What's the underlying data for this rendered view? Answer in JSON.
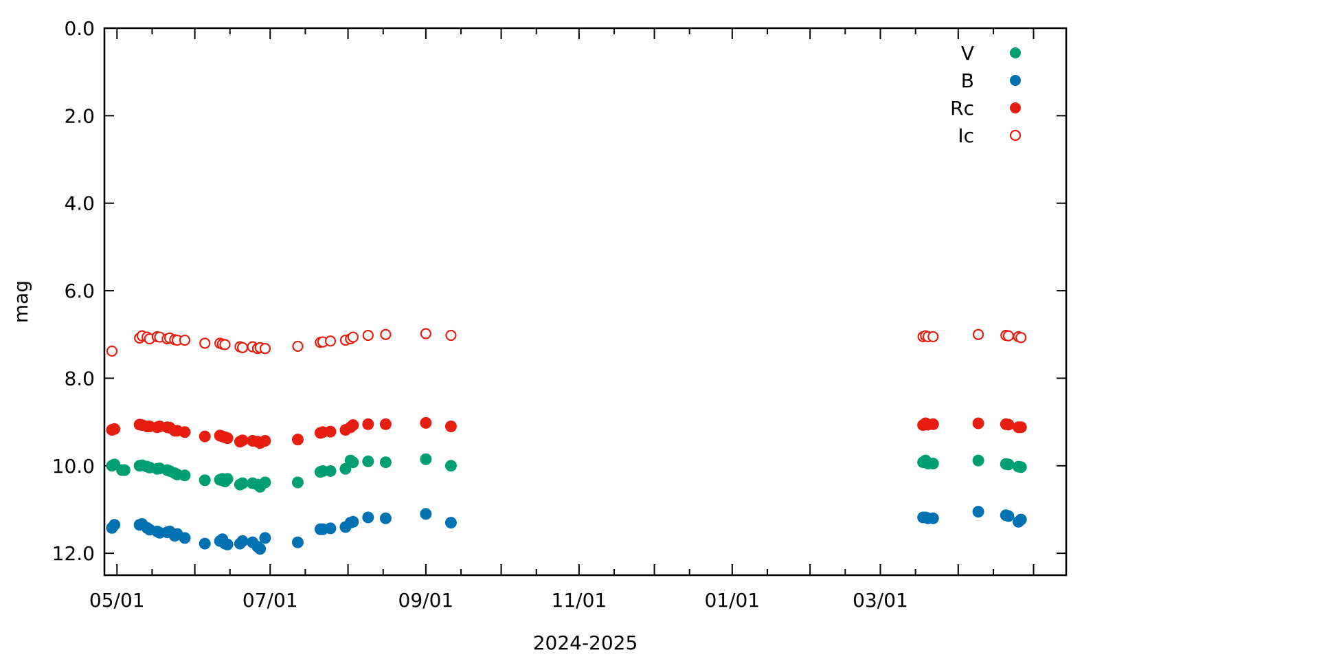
{
  "chart_data": {
    "type": "scatter",
    "title": "",
    "xlabel": "2024-2025",
    "ylabel": "mag",
    "y_reversed": true,
    "ylim": [
      0.0,
      12.5
    ],
    "xlim": [
      "2024-04-26",
      "2025-05-14"
    ],
    "y_ticks": [
      "0.0",
      "2.0",
      "4.0",
      "6.0",
      "8.0",
      "10.0",
      "12.0"
    ],
    "x_ticks": [
      {
        "date": "2024-05-01",
        "label": "05/01"
      },
      {
        "date": "2024-07-01",
        "label": "07/01"
      },
      {
        "date": "2024-09-01",
        "label": "09/01"
      },
      {
        "date": "2024-11-01",
        "label": "11/01"
      },
      {
        "date": "2025-01-01",
        "label": "01/01"
      },
      {
        "date": "2025-03-01",
        "label": "03/01"
      }
    ],
    "grid": false,
    "legend_position": "top-right",
    "series": [
      {
        "name": "V",
        "color": "#009e73",
        "marker": "filled-circle",
        "points": [
          [
            "2024-04-29",
            10.0
          ],
          [
            "2024-04-30",
            9.97
          ],
          [
            "2024-05-03",
            10.1
          ],
          [
            "2024-05-04",
            10.1
          ],
          [
            "2024-05-10",
            10.0
          ],
          [
            "2024-05-11",
            9.99
          ],
          [
            "2024-05-13",
            10.02
          ],
          [
            "2024-05-14",
            10.04
          ],
          [
            "2024-05-17",
            10.07
          ],
          [
            "2024-05-18",
            10.06
          ],
          [
            "2024-05-21",
            10.1
          ],
          [
            "2024-05-22",
            10.12
          ],
          [
            "2024-05-24",
            10.17
          ],
          [
            "2024-05-25",
            10.2
          ],
          [
            "2024-05-28",
            10.22
          ],
          [
            "2024-06-05",
            10.33
          ],
          [
            "2024-06-11",
            10.32
          ],
          [
            "2024-06-12",
            10.3
          ],
          [
            "2024-06-13",
            10.36
          ],
          [
            "2024-06-14",
            10.3
          ],
          [
            "2024-06-19",
            10.43
          ],
          [
            "2024-06-20",
            10.4
          ],
          [
            "2024-06-24",
            10.4
          ],
          [
            "2024-06-26",
            10.43
          ],
          [
            "2024-06-27",
            10.48
          ],
          [
            "2024-06-29",
            10.38
          ],
          [
            "2024-07-12",
            10.38
          ],
          [
            "2024-07-21",
            10.14
          ],
          [
            "2024-07-22",
            10.12
          ],
          [
            "2024-07-25",
            10.12
          ],
          [
            "2024-07-31",
            10.07
          ],
          [
            "2024-08-02",
            9.88
          ],
          [
            "2024-08-03",
            9.92
          ],
          [
            "2024-08-09",
            9.9
          ],
          [
            "2024-08-16",
            9.92
          ],
          [
            "2024-09-01",
            9.85
          ],
          [
            "2024-09-11",
            10.0
          ],
          [
            "2025-03-18",
            9.92
          ],
          [
            "2025-03-19",
            9.88
          ],
          [
            "2025-03-20",
            9.95
          ],
          [
            "2025-03-22",
            9.95
          ],
          [
            "2025-04-09",
            9.88
          ],
          [
            "2025-04-20",
            9.96
          ],
          [
            "2025-04-21",
            9.97
          ],
          [
            "2025-04-25",
            10.02
          ],
          [
            "2025-04-26",
            10.03
          ]
        ]
      },
      {
        "name": "B",
        "color": "#0072b2",
        "marker": "filled-circle",
        "points": [
          [
            "2024-04-29",
            11.42
          ],
          [
            "2024-04-30",
            11.35
          ],
          [
            "2024-05-10",
            11.35
          ],
          [
            "2024-05-11",
            11.33
          ],
          [
            "2024-05-13",
            11.42
          ],
          [
            "2024-05-14",
            11.46
          ],
          [
            "2024-05-17",
            11.5
          ],
          [
            "2024-05-18",
            11.53
          ],
          [
            "2024-05-21",
            11.52
          ],
          [
            "2024-05-22",
            11.5
          ],
          [
            "2024-05-24",
            11.6
          ],
          [
            "2024-05-25",
            11.56
          ],
          [
            "2024-05-28",
            11.65
          ],
          [
            "2024-06-05",
            11.78
          ],
          [
            "2024-06-11",
            11.72
          ],
          [
            "2024-06-12",
            11.68
          ],
          [
            "2024-06-13",
            11.78
          ],
          [
            "2024-06-14",
            11.8
          ],
          [
            "2024-06-19",
            11.78
          ],
          [
            "2024-06-20",
            11.72
          ],
          [
            "2024-06-24",
            11.75
          ],
          [
            "2024-06-26",
            11.85
          ],
          [
            "2024-06-27",
            11.9
          ],
          [
            "2024-06-29",
            11.65
          ],
          [
            "2024-07-12",
            11.75
          ],
          [
            "2024-07-21",
            11.45
          ],
          [
            "2024-07-22",
            11.45
          ],
          [
            "2024-07-25",
            11.43
          ],
          [
            "2024-07-31",
            11.4
          ],
          [
            "2024-08-02",
            11.3
          ],
          [
            "2024-08-03",
            11.28
          ],
          [
            "2024-08-09",
            11.18
          ],
          [
            "2024-08-16",
            11.2
          ],
          [
            "2024-09-01",
            11.1
          ],
          [
            "2024-09-11",
            11.3
          ],
          [
            "2025-03-18",
            11.18
          ],
          [
            "2025-03-19",
            11.18
          ],
          [
            "2025-03-20",
            11.2
          ],
          [
            "2025-03-22",
            11.2
          ],
          [
            "2025-04-09",
            11.05
          ],
          [
            "2025-04-20",
            11.13
          ],
          [
            "2025-04-21",
            11.15
          ],
          [
            "2025-04-25",
            11.28
          ],
          [
            "2025-04-26",
            11.23
          ]
        ]
      },
      {
        "name": "Rc",
        "color": "#e51e10",
        "marker": "filled-circle",
        "points": [
          [
            "2024-04-29",
            9.18
          ],
          [
            "2024-04-30",
            9.16
          ],
          [
            "2024-05-10",
            9.06
          ],
          [
            "2024-05-11",
            9.07
          ],
          [
            "2024-05-13",
            9.1
          ],
          [
            "2024-05-14",
            9.1
          ],
          [
            "2024-05-17",
            9.12
          ],
          [
            "2024-05-18",
            9.1
          ],
          [
            "2024-05-21",
            9.12
          ],
          [
            "2024-05-22",
            9.13
          ],
          [
            "2024-05-24",
            9.2
          ],
          [
            "2024-05-25",
            9.2
          ],
          [
            "2024-05-28",
            9.23
          ],
          [
            "2024-06-05",
            9.33
          ],
          [
            "2024-06-11",
            9.31
          ],
          [
            "2024-06-12",
            9.33
          ],
          [
            "2024-06-13",
            9.35
          ],
          [
            "2024-06-14",
            9.37
          ],
          [
            "2024-06-19",
            9.45
          ],
          [
            "2024-06-20",
            9.42
          ],
          [
            "2024-06-24",
            9.43
          ],
          [
            "2024-06-26",
            9.45
          ],
          [
            "2024-06-27",
            9.48
          ],
          [
            "2024-06-29",
            9.43
          ],
          [
            "2024-07-12",
            9.4
          ],
          [
            "2024-07-21",
            9.25
          ],
          [
            "2024-07-22",
            9.23
          ],
          [
            "2024-07-25",
            9.22
          ],
          [
            "2024-07-31",
            9.18
          ],
          [
            "2024-08-02",
            9.12
          ],
          [
            "2024-08-03",
            9.07
          ],
          [
            "2024-08-09",
            9.05
          ],
          [
            "2024-08-16",
            9.05
          ],
          [
            "2024-09-01",
            9.02
          ],
          [
            "2024-09-11",
            9.1
          ],
          [
            "2025-03-18",
            9.07
          ],
          [
            "2025-03-19",
            9.03
          ],
          [
            "2025-03-20",
            9.06
          ],
          [
            "2025-03-22",
            9.05
          ],
          [
            "2025-04-09",
            9.03
          ],
          [
            "2025-04-20",
            9.05
          ],
          [
            "2025-04-21",
            9.06
          ],
          [
            "2025-04-25",
            9.12
          ],
          [
            "2025-04-26",
            9.12
          ]
        ]
      },
      {
        "name": "Ic",
        "color": "#e51e10",
        "marker": "open-circle",
        "points": [
          [
            "2024-04-29",
            7.38
          ],
          [
            "2024-05-10",
            7.08
          ],
          [
            "2024-05-11",
            7.03
          ],
          [
            "2024-05-13",
            7.06
          ],
          [
            "2024-05-14",
            7.1
          ],
          [
            "2024-05-17",
            7.05
          ],
          [
            "2024-05-18",
            7.06
          ],
          [
            "2024-05-21",
            7.1
          ],
          [
            "2024-05-22",
            7.08
          ],
          [
            "2024-05-24",
            7.12
          ],
          [
            "2024-05-25",
            7.13
          ],
          [
            "2024-05-28",
            7.13
          ],
          [
            "2024-06-05",
            7.2
          ],
          [
            "2024-06-11",
            7.2
          ],
          [
            "2024-06-12",
            7.22
          ],
          [
            "2024-06-13",
            7.23
          ],
          [
            "2024-06-19",
            7.28
          ],
          [
            "2024-06-20",
            7.3
          ],
          [
            "2024-06-24",
            7.28
          ],
          [
            "2024-06-26",
            7.32
          ],
          [
            "2024-06-27",
            7.3
          ],
          [
            "2024-06-29",
            7.32
          ],
          [
            "2024-07-12",
            7.27
          ],
          [
            "2024-07-21",
            7.18
          ],
          [
            "2024-07-22",
            7.17
          ],
          [
            "2024-07-25",
            7.15
          ],
          [
            "2024-07-31",
            7.13
          ],
          [
            "2024-08-02",
            7.1
          ],
          [
            "2024-08-03",
            7.06
          ],
          [
            "2024-08-09",
            7.02
          ],
          [
            "2024-08-16",
            7.0
          ],
          [
            "2024-09-01",
            6.98
          ],
          [
            "2024-09-11",
            7.02
          ],
          [
            "2025-03-18",
            7.05
          ],
          [
            "2025-03-19",
            7.03
          ],
          [
            "2025-03-20",
            7.05
          ],
          [
            "2025-03-22",
            7.05
          ],
          [
            "2025-04-09",
            7.0
          ],
          [
            "2025-04-20",
            7.02
          ],
          [
            "2025-04-21",
            7.03
          ],
          [
            "2025-04-25",
            7.05
          ],
          [
            "2025-04-26",
            7.07
          ]
        ]
      }
    ]
  }
}
